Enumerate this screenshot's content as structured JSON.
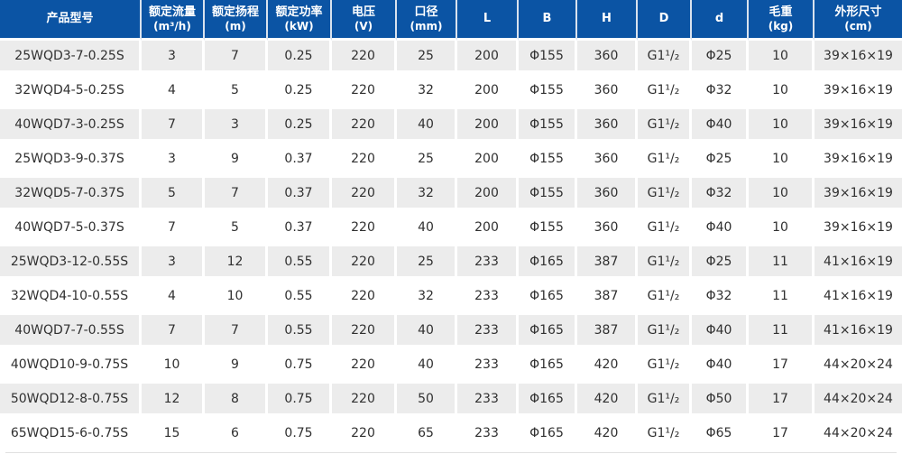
{
  "colors": {
    "header-bg": "#0b54a4",
    "header-text": "#ffffff",
    "header-divider": "#d9e2ee",
    "row-alt-bg": "#ececec",
    "row-bg": "#ffffff",
    "body-text": "#303030",
    "bottom-border": "#e0e0e0"
  },
  "chart_data": {
    "type": "table",
    "columns": [
      {
        "key": "model",
        "label": "产品型号",
        "unit": ""
      },
      {
        "key": "flow",
        "label": "额定流量",
        "unit": "(m³/h)"
      },
      {
        "key": "head",
        "label": "额定扬程",
        "unit": "(m)"
      },
      {
        "key": "power",
        "label": "额定功率",
        "unit": "(kW)"
      },
      {
        "key": "voltage",
        "label": "电压",
        "unit": "(V)"
      },
      {
        "key": "bore",
        "label": "口径",
        "unit": "(mm)"
      },
      {
        "key": "L",
        "label": "L",
        "unit": ""
      },
      {
        "key": "B",
        "label": "B",
        "unit": ""
      },
      {
        "key": "H",
        "label": "H",
        "unit": ""
      },
      {
        "key": "D",
        "label": "D",
        "unit": ""
      },
      {
        "key": "d",
        "label": "d",
        "unit": ""
      },
      {
        "key": "weight",
        "label": "毛重",
        "unit": "(kg)"
      },
      {
        "key": "dims",
        "label": "外形尺寸",
        "unit": "(cm)"
      }
    ],
    "rows": [
      [
        "25WQD3-7-0.25S",
        "3",
        "7",
        "0.25",
        "220",
        "25",
        "200",
        "Φ155",
        "360",
        "G1¹/₂",
        "Φ25",
        "10",
        "39×16×19"
      ],
      [
        "32WQD4-5-0.25S",
        "4",
        "5",
        "0.25",
        "220",
        "32",
        "200",
        "Φ155",
        "360",
        "G1¹/₂",
        "Φ32",
        "10",
        "39×16×19"
      ],
      [
        "40WQD7-3-0.25S",
        "7",
        "3",
        "0.25",
        "220",
        "40",
        "200",
        "Φ155",
        "360",
        "G1¹/₂",
        "Φ40",
        "10",
        "39×16×19"
      ],
      [
        "25WQD3-9-0.37S",
        "3",
        "9",
        "0.37",
        "220",
        "25",
        "200",
        "Φ155",
        "360",
        "G1¹/₂",
        "Φ25",
        "10",
        "39×16×19"
      ],
      [
        "32WQD5-7-0.37S",
        "5",
        "7",
        "0.37",
        "220",
        "32",
        "200",
        "Φ155",
        "360",
        "G1¹/₂",
        "Φ32",
        "10",
        "39×16×19"
      ],
      [
        "40WQD7-5-0.37S",
        "7",
        "5",
        "0.37",
        "220",
        "40",
        "200",
        "Φ155",
        "360",
        "G1¹/₂",
        "Φ40",
        "10",
        "39×16×19"
      ],
      [
        "25WQD3-12-0.55S",
        "3",
        "12",
        "0.55",
        "220",
        "25",
        "233",
        "Φ165",
        "387",
        "G1¹/₂",
        "Φ25",
        "11",
        "41×16×19"
      ],
      [
        "32WQD4-10-0.55S",
        "4",
        "10",
        "0.55",
        "220",
        "32",
        "233",
        "Φ165",
        "387",
        "G1¹/₂",
        "Φ32",
        "11",
        "41×16×19"
      ],
      [
        "40WQD7-7-0.55S",
        "7",
        "7",
        "0.55",
        "220",
        "40",
        "233",
        "Φ165",
        "387",
        "G1¹/₂",
        "Φ40",
        "11",
        "41×16×19"
      ],
      [
        "40WQD10-9-0.75S",
        "10",
        "9",
        "0.75",
        "220",
        "40",
        "233",
        "Φ165",
        "420",
        "G1¹/₂",
        "Φ40",
        "17",
        "44×20×24"
      ],
      [
        "50WQD12-8-0.75S",
        "12",
        "8",
        "0.75",
        "220",
        "50",
        "233",
        "Φ165",
        "420",
        "G1¹/₂",
        "Φ50",
        "17",
        "44×20×24"
      ],
      [
        "65WQD15-6-0.75S",
        "15",
        "6",
        "0.75",
        "220",
        "65",
        "233",
        "Φ165",
        "420",
        "G1¹/₂",
        "Φ65",
        "17",
        "44×20×24"
      ]
    ]
  }
}
